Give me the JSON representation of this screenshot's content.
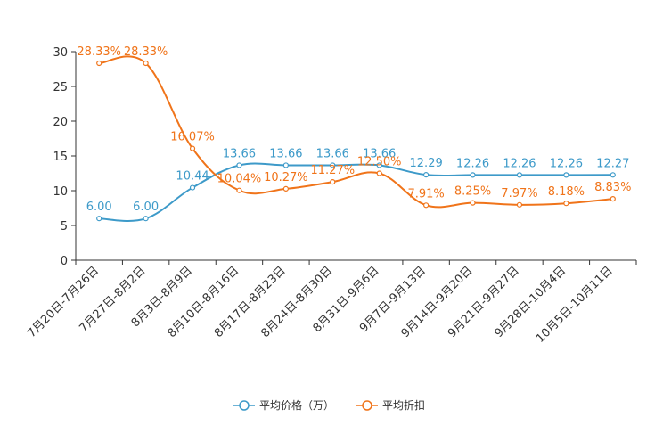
{
  "chart_data": {
    "type": "line",
    "title": "",
    "xlabel": "",
    "ylabel": "",
    "ylim": [
      0,
      30
    ],
    "yticks": [
      0,
      5,
      10,
      15,
      20,
      25,
      30
    ],
    "grid": false,
    "legend_position": "bottom-center",
    "categories": [
      "7月20日-7月26日",
      "7月27日-8月2日",
      "8月3日-8月9日",
      "8月10日-8月16日",
      "8月17日-8月23日",
      "8月24日-8月30日",
      "8月31日-9月6日",
      "9月7日-9月13日",
      "9月14日-9月20日",
      "9月21日-9月27日",
      "9月28日-10月4日",
      "10月5日-10月11日"
    ],
    "series": [
      {
        "name": "平均价格（万）",
        "color": "#3d9ac9",
        "values": [
          6.0,
          6.0,
          10.44,
          13.66,
          13.66,
          13.66,
          13.66,
          12.29,
          12.26,
          12.26,
          12.26,
          12.27
        ],
        "labels": [
          "6.00",
          "6.00",
          "10.44",
          "13.66",
          "13.66",
          "13.66",
          "13.66",
          "12.29",
          "12.26",
          "12.26",
          "12.26",
          "12.27"
        ]
      },
      {
        "name": "平均折扣",
        "color": "#f0741a",
        "values": [
          28.33,
          28.33,
          16.07,
          10.04,
          10.27,
          11.27,
          12.5,
          7.91,
          8.25,
          7.97,
          8.18,
          8.83
        ],
        "labels": [
          "28.33%",
          "28.33%",
          "16.07%",
          "10.04%",
          "10.27%",
          "11.27%",
          "12.50%",
          "7.91%",
          "8.25%",
          "7.97%",
          "8.18%",
          "8.83%"
        ]
      }
    ]
  }
}
